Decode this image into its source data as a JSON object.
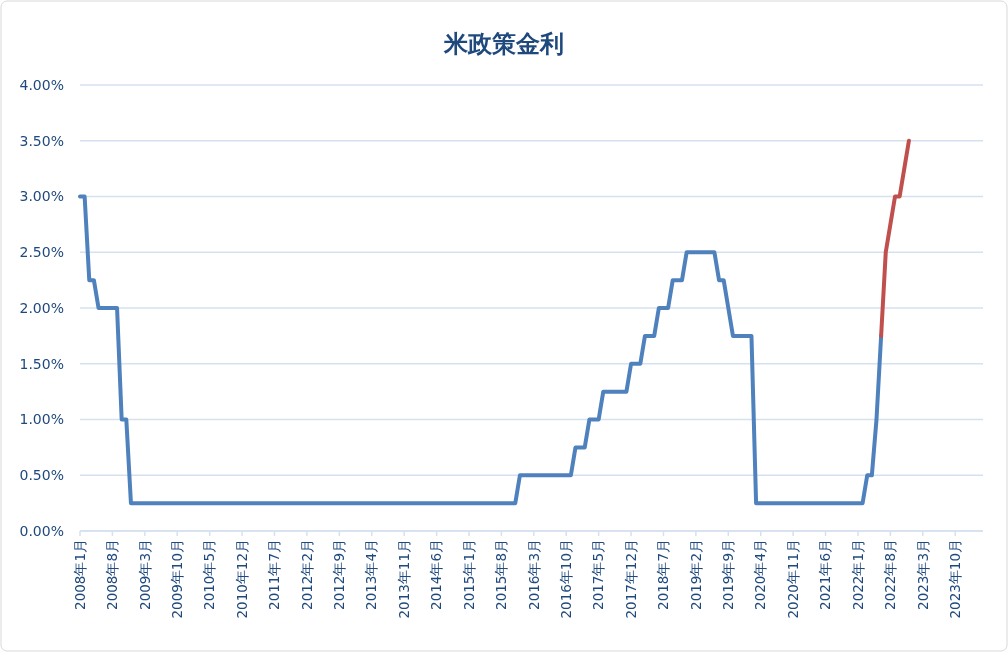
{
  "chart_data": {
    "type": "line",
    "title": "米政策金利",
    "categories": [
      "2008年1月",
      null,
      null,
      null,
      null,
      null,
      null,
      "2008年8月",
      null,
      null,
      null,
      null,
      null,
      null,
      "2009年3月",
      null,
      null,
      null,
      null,
      null,
      null,
      "2009年10月",
      null,
      null,
      null,
      null,
      null,
      null,
      "2010年5月",
      null,
      null,
      null,
      null,
      null,
      null,
      "2010年12月",
      null,
      null,
      null,
      null,
      null,
      null,
      "2011年7月",
      null,
      null,
      null,
      null,
      null,
      null,
      "2012年2月",
      null,
      null,
      null,
      null,
      null,
      null,
      "2012年9月",
      null,
      null,
      null,
      null,
      null,
      null,
      "2013年4月",
      null,
      null,
      null,
      null,
      null,
      null,
      "2013年11月",
      null,
      null,
      null,
      null,
      null,
      null,
      "2014年6月",
      null,
      null,
      null,
      null,
      null,
      null,
      "2015年1月",
      null,
      null,
      null,
      null,
      null,
      null,
      "2015年8月",
      null,
      null,
      null,
      null,
      null,
      null,
      "2016年3月",
      null,
      null,
      null,
      null,
      null,
      null,
      "2016年10月",
      null,
      null,
      null,
      null,
      null,
      null,
      "2017年5月",
      null,
      null,
      null,
      null,
      null,
      null,
      "2017年12月",
      null,
      null,
      null,
      null,
      null,
      null,
      "2018年7月",
      null,
      null,
      null,
      null,
      null,
      null,
      "2019年2月",
      null,
      null,
      null,
      null,
      null,
      null,
      "2019年9月",
      null,
      null,
      null,
      null,
      null,
      null,
      "2020年4月",
      null,
      null,
      null,
      null,
      null,
      null,
      "2020年11月",
      null,
      null,
      null,
      null,
      null,
      null,
      "2021年6月",
      null,
      null,
      null,
      null,
      null,
      null,
      "2022年1月",
      null,
      null,
      null,
      null,
      null,
      null,
      "2022年8月",
      null,
      null,
      null,
      null,
      null,
      null,
      "2023年3月",
      null,
      null,
      null,
      null,
      null,
      null,
      "2023年10月",
      null,
      null,
      null,
      null,
      null,
      null
    ],
    "series": [
      {
        "color": "#4f81bd",
        "values": [
          3,
          3,
          2.25,
          2.25,
          2,
          2,
          2,
          2,
          2,
          1,
          1,
          0.25,
          0.25,
          0.25,
          0.25,
          0.25,
          0.25,
          0.25,
          0.25,
          0.25,
          0.25,
          0.25,
          0.25,
          0.25,
          0.25,
          0.25,
          0.25,
          0.25,
          0.25,
          0.25,
          0.25,
          0.25,
          0.25,
          0.25,
          0.25,
          0.25,
          0.25,
          0.25,
          0.25,
          0.25,
          0.25,
          0.25,
          0.25,
          0.25,
          0.25,
          0.25,
          0.25,
          0.25,
          0.25,
          0.25,
          0.25,
          0.25,
          0.25,
          0.25,
          0.25,
          0.25,
          0.25,
          0.25,
          0.25,
          0.25,
          0.25,
          0.25,
          0.25,
          0.25,
          0.25,
          0.25,
          0.25,
          0.25,
          0.25,
          0.25,
          0.25,
          0.25,
          0.25,
          0.25,
          0.25,
          0.25,
          0.25,
          0.25,
          0.25,
          0.25,
          0.25,
          0.25,
          0.25,
          0.25,
          0.25,
          0.25,
          0.25,
          0.25,
          0.25,
          0.25,
          0.25,
          0.25,
          0.25,
          0.25,
          0.25,
          0.5,
          0.5,
          0.5,
          0.5,
          0.5,
          0.5,
          0.5,
          0.5,
          0.5,
          0.5,
          0.5,
          0.5,
          0.75,
          0.75,
          0.75,
          1,
          1,
          1,
          1.25,
          1.25,
          1.25,
          1.25,
          1.25,
          1.25,
          1.5,
          1.5,
          1.5,
          1.75,
          1.75,
          1.75,
          2,
          2,
          2,
          2.25,
          2.25,
          2.25,
          2.5,
          2.5,
          2.5,
          2.5,
          2.5,
          2.5,
          2.5,
          2.25,
          2.25,
          2,
          1.75,
          1.75,
          1.75,
          1.75,
          1.75,
          0.25,
          0.25,
          0.25,
          0.25,
          0.25,
          0.25,
          0.25,
          0.25,
          0.25,
          0.25,
          0.25,
          0.25,
          0.25,
          0.25,
          0.25,
          0.25,
          0.25,
          0.25,
          0.25,
          0.25,
          0.25,
          0.25,
          0.25,
          0.25,
          0.5,
          0.5,
          1,
          1.75,
          null,
          null,
          null,
          null,
          null,
          null,
          null,
          null,
          null,
          null,
          null,
          null,
          null,
          null,
          null,
          null,
          null,
          null,
          null,
          null,
          null,
          null
        ]
      },
      {
        "color": "#c0504d",
        "values": [
          null,
          null,
          null,
          null,
          null,
          null,
          null,
          null,
          null,
          null,
          null,
          null,
          null,
          null,
          null,
          null,
          null,
          null,
          null,
          null,
          null,
          null,
          null,
          null,
          null,
          null,
          null,
          null,
          null,
          null,
          null,
          null,
          null,
          null,
          null,
          null,
          null,
          null,
          null,
          null,
          null,
          null,
          null,
          null,
          null,
          null,
          null,
          null,
          null,
          null,
          null,
          null,
          null,
          null,
          null,
          null,
          null,
          null,
          null,
          null,
          null,
          null,
          null,
          null,
          null,
          null,
          null,
          null,
          null,
          null,
          null,
          null,
          null,
          null,
          null,
          null,
          null,
          null,
          null,
          null,
          null,
          null,
          null,
          null,
          null,
          null,
          null,
          null,
          null,
          null,
          null,
          null,
          null,
          null,
          null,
          null,
          null,
          null,
          null,
          null,
          null,
          null,
          null,
          null,
          null,
          null,
          null,
          null,
          null,
          null,
          null,
          null,
          null,
          null,
          null,
          null,
          null,
          null,
          null,
          null,
          null,
          null,
          null,
          null,
          null,
          null,
          null,
          null,
          null,
          null,
          null,
          null,
          null,
          null,
          null,
          null,
          null,
          null,
          null,
          null,
          null,
          null,
          null,
          null,
          null,
          null,
          null,
          null,
          null,
          null,
          null,
          null,
          null,
          null,
          null,
          null,
          null,
          null,
          null,
          null,
          null,
          null,
          null,
          null,
          null,
          null,
          null,
          null,
          null,
          null,
          null,
          null,
          null,
          1.75,
          2.5,
          2.75,
          3,
          3,
          3.25,
          3.5,
          null,
          null,
          null,
          null,
          null,
          null,
          null,
          null,
          null,
          null,
          null,
          null,
          null,
          null,
          null,
          null
        ]
      }
    ],
    "ylim": [
      0,
      4
    ],
    "yticks": [
      {
        "value": 0,
        "label": "0.00%"
      },
      {
        "value": 0.5,
        "label": "0.50%"
      },
      {
        "value": 1,
        "label": "1.00%"
      },
      {
        "value": 1.5,
        "label": "1.50%"
      },
      {
        "value": 2,
        "label": "2.00%"
      },
      {
        "value": 2.5,
        "label": "2.50%"
      },
      {
        "value": 3,
        "label": "3.00%"
      },
      {
        "value": 3.5,
        "label": "3.50%"
      },
      {
        "value": 4,
        "label": "4.00%"
      }
    ],
    "grid": "y",
    "marker": "none",
    "line_style": "solid"
  }
}
